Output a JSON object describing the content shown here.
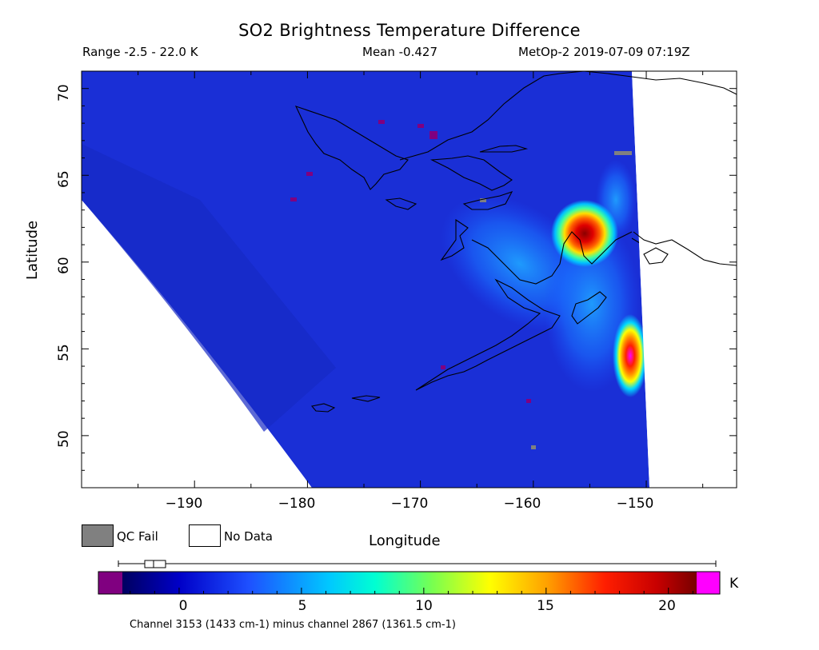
{
  "header": {
    "title": "SO2 Brightness Temperature Difference",
    "range": "Range -2.5 - 22.0 K",
    "mean": "Mean -0.427",
    "satellite_time": "MetOp-2 2019-07-09 07:19Z"
  },
  "map": {
    "ylabel": "Latitude",
    "xlabel": "Longitude",
    "lat_ticks": [
      "70",
      "65",
      "60",
      "55",
      "50"
    ],
    "lon_ticks": [
      "−190",
      "−180",
      "−170",
      "−160",
      "−150"
    ],
    "lat_range": [
      47,
      71
    ],
    "lon_range": [
      -200,
      -142
    ],
    "background_color": "#1a2fd6",
    "features": [
      {
        "name": "so2-plume-cook-inlet",
        "lon": -154.2,
        "lat": 61.6,
        "peak_k": 22
      },
      {
        "name": "so2-plume-gulf-edge",
        "lon": -149.9,
        "lat": 55.2,
        "peak_k": 22
      }
    ]
  },
  "legend": {
    "qc_fail": "QC Fail",
    "no_data": "No Data",
    "qc_fail_color": "#808080",
    "no_data_color": "#ffffff"
  },
  "colorbar": {
    "min": -3.3,
    "max": 22.1,
    "ticks": [
      "0",
      "5",
      "10",
      "15",
      "20"
    ],
    "unit": "K",
    "under_color": "#800080",
    "over_color": "#ff00ff",
    "box_plot_label": "distribution"
  },
  "footnote": "Channel 3153 (1433 cm-1) minus channel 2867 (1361.5 cm-1)"
}
